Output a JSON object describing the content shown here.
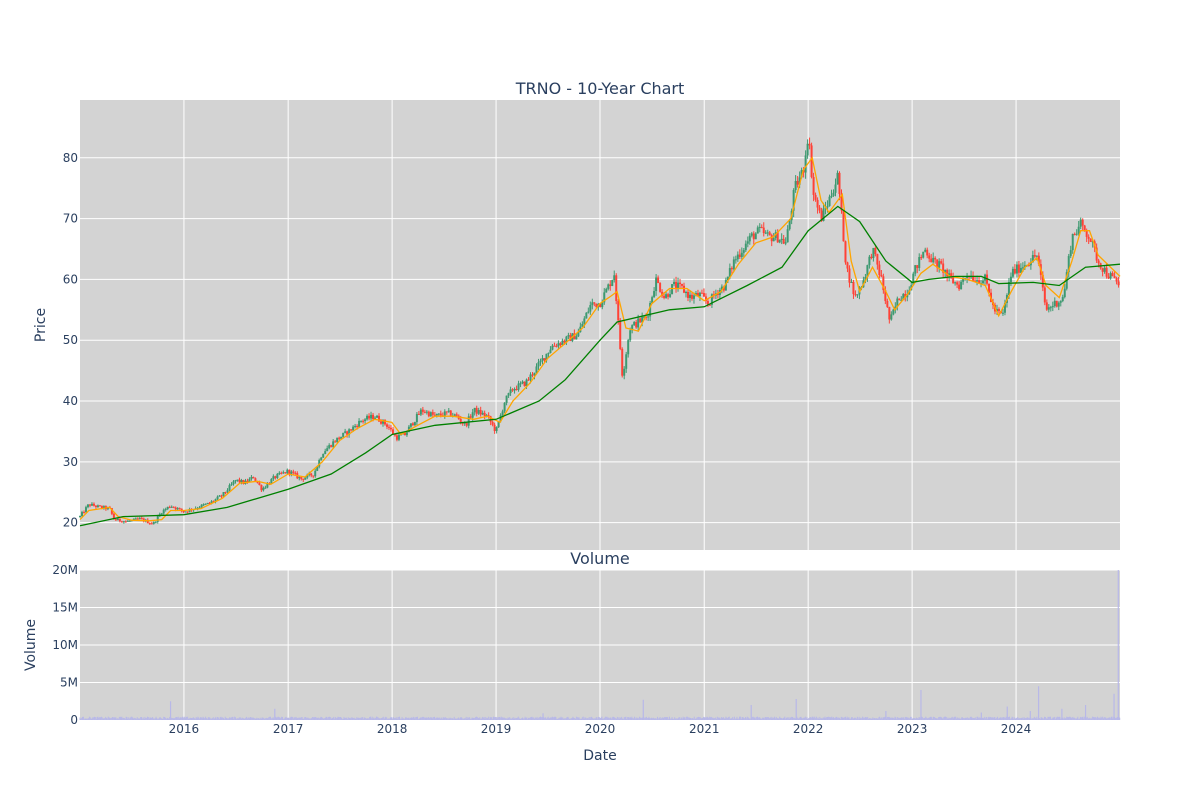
{
  "chart_data": [
    {
      "type": "candlestick",
      "title": "TRNO - 10-Year Chart",
      "ylabel": "Price",
      "ylim": [
        15.5,
        89.5
      ],
      "yticks": [
        20,
        30,
        40,
        50,
        60,
        70,
        80
      ],
      "xlim": [
        "2015-01-01",
        "2024-12-31"
      ],
      "xticks": [
        "2016-01-01",
        "2017-01-01",
        "2018-01-01",
        "2019-01-01",
        "2020-01-01",
        "2021-01-01",
        "2022-01-01",
        "2023-01-01",
        "2024-01-01"
      ],
      "xtick_labels": [
        "2016",
        "2017",
        "2018",
        "2019",
        "2020",
        "2021",
        "2022",
        "2023",
        "2024"
      ],
      "grid": true,
      "colors": {
        "plot_bg": "#d3d3d3",
        "grid": "#ffffff",
        "up": "#3d9970",
        "down": "#ff4136",
        "short_ma": "#ffa500",
        "long_ma": "#008000"
      },
      "close": [
        [
          "2015-01-01",
          21
        ],
        [
          "2015-02-01",
          23
        ],
        [
          "2015-03-15",
          22.5
        ],
        [
          "2015-04-15",
          22.3
        ],
        [
          "2015-05-01",
          20.5
        ],
        [
          "2015-06-15",
          20.2
        ],
        [
          "2015-08-01",
          20.6
        ],
        [
          "2015-09-15",
          19.8
        ],
        [
          "2015-10-15",
          21.8
        ],
        [
          "2015-11-15",
          22.8
        ],
        [
          "2016-01-01",
          21.8
        ],
        [
          "2016-02-15",
          22.5
        ],
        [
          "2016-04-01",
          23.2
        ],
        [
          "2016-05-15",
          24.5
        ],
        [
          "2016-07-01",
          27
        ],
        [
          "2016-08-01",
          26.5
        ],
        [
          "2016-09-01",
          27.5
        ],
        [
          "2016-10-01",
          25.5
        ],
        [
          "2016-11-15",
          27.5
        ],
        [
          "2017-01-01",
          28.5
        ],
        [
          "2017-02-15",
          27.2
        ],
        [
          "2017-04-01",
          28
        ],
        [
          "2017-05-01",
          31.5
        ],
        [
          "2017-06-15",
          33.5
        ],
        [
          "2017-08-01",
          35
        ],
        [
          "2017-09-15",
          36.8
        ],
        [
          "2017-11-01",
          37.5
        ],
        [
          "2017-12-15",
          36
        ],
        [
          "2018-01-15",
          34
        ],
        [
          "2018-02-15",
          34.5
        ],
        [
          "2018-03-15",
          36.5
        ],
        [
          "2018-04-15",
          38.5
        ],
        [
          "2018-06-01",
          37.5
        ],
        [
          "2018-07-15",
          38
        ],
        [
          "2018-08-15",
          37.5
        ],
        [
          "2018-09-15",
          36
        ],
        [
          "2018-10-15",
          38.5
        ],
        [
          "2018-12-01",
          37.5
        ],
        [
          "2019-01-01",
          35
        ],
        [
          "2019-02-01",
          40
        ],
        [
          "2019-03-01",
          42
        ],
        [
          "2019-04-15",
          43
        ],
        [
          "2019-06-01",
          46
        ],
        [
          "2019-07-15",
          49
        ],
        [
          "2019-09-01",
          50
        ],
        [
          "2019-10-15",
          51
        ],
        [
          "2019-12-01",
          56
        ],
        [
          "2019-12-31",
          56
        ],
        [
          "2020-02-01",
          59
        ],
        [
          "2020-02-20",
          61
        ],
        [
          "2020-03-20",
          44
        ],
        [
          "2020-04-15",
          52
        ],
        [
          "2020-05-15",
          53
        ],
        [
          "2020-06-15",
          54
        ],
        [
          "2020-07-15",
          60
        ],
        [
          "2020-08-15",
          57
        ],
        [
          "2020-09-15",
          59
        ],
        [
          "2020-10-15",
          58.5
        ],
        [
          "2020-11-15",
          57
        ],
        [
          "2020-12-15",
          57.5
        ],
        [
          "2021-01-15",
          56
        ],
        [
          "2021-02-15",
          58
        ],
        [
          "2021-03-15",
          59
        ],
        [
          "2021-04-15",
          63
        ],
        [
          "2021-05-15",
          65
        ],
        [
          "2021-06-15",
          67
        ],
        [
          "2021-07-15",
          68
        ],
        [
          "2021-08-15",
          67
        ],
        [
          "2021-09-15",
          67
        ],
        [
          "2021-10-15",
          66
        ],
        [
          "2021-11-15",
          75
        ],
        [
          "2021-12-15",
          78
        ],
        [
          "2022-01-01",
          84
        ],
        [
          "2022-01-20",
          74
        ],
        [
          "2022-02-15",
          70
        ],
        [
          "2022-03-15",
          73
        ],
        [
          "2022-04-15",
          77
        ],
        [
          "2022-05-15",
          62
        ],
        [
          "2022-06-15",
          57
        ],
        [
          "2022-07-15",
          60
        ],
        [
          "2022-08-15",
          65
        ],
        [
          "2022-09-15",
          60
        ],
        [
          "2022-10-15",
          53
        ],
        [
          "2022-11-15",
          57
        ],
        [
          "2022-12-15",
          58
        ],
        [
          "2023-01-15",
          62
        ],
        [
          "2023-02-15",
          65
        ],
        [
          "2023-03-15",
          63
        ],
        [
          "2023-04-15",
          62
        ],
        [
          "2023-05-15",
          60
        ],
        [
          "2023-06-15",
          59
        ],
        [
          "2023-07-15",
          61
        ],
        [
          "2023-08-15",
          60
        ],
        [
          "2023-09-15",
          60
        ],
        [
          "2023-10-15",
          55
        ],
        [
          "2023-11-15",
          54
        ],
        [
          "2023-12-15",
          61
        ],
        [
          "2024-01-15",
          62
        ],
        [
          "2024-02-15",
          63
        ],
        [
          "2024-03-15",
          64
        ],
        [
          "2024-04-15",
          55
        ],
        [
          "2024-05-15",
          56
        ],
        [
          "2024-06-15",
          57
        ],
        [
          "2024-07-15",
          67
        ],
        [
          "2024-08-15",
          69
        ],
        [
          "2024-09-15",
          67
        ],
        [
          "2024-10-15",
          63
        ],
        [
          "2024-11-15",
          61
        ],
        [
          "2024-12-31",
          59
        ]
      ],
      "series": [
        {
          "name": "",
          "role": "short_ma",
          "points": [
            [
              "2015-01-01",
              20.5
            ],
            [
              "2015-02-01",
              22
            ],
            [
              "2015-04-15",
              22.5
            ],
            [
              "2015-05-15",
              21
            ],
            [
              "2015-07-01",
              20.4
            ],
            [
              "2015-09-01",
              20.3
            ],
            [
              "2015-10-15",
              20.5
            ],
            [
              "2015-11-15",
              22
            ],
            [
              "2016-01-01",
              22
            ],
            [
              "2016-03-01",
              22.3
            ],
            [
              "2016-05-15",
              24
            ],
            [
              "2016-07-15",
              26.5
            ],
            [
              "2016-09-15",
              26.8
            ],
            [
              "2016-11-01",
              26.3
            ],
            [
              "2017-01-01",
              28
            ],
            [
              "2017-03-01",
              27.5
            ],
            [
              "2017-05-01",
              30
            ],
            [
              "2017-07-01",
              33.5
            ],
            [
              "2017-09-01",
              35.5
            ],
            [
              "2017-11-01",
              37
            ],
            [
              "2017-12-31",
              36.5
            ],
            [
              "2018-02-01",
              34.5
            ],
            [
              "2018-04-01",
              36
            ],
            [
              "2018-06-01",
              37.5
            ],
            [
              "2018-08-01",
              37.5
            ],
            [
              "2018-10-15",
              37
            ],
            [
              "2018-12-01",
              37.5
            ],
            [
              "2019-01-15",
              36.5
            ],
            [
              "2019-03-01",
              40
            ],
            [
              "2019-05-01",
              43
            ],
            [
              "2019-07-01",
              47
            ],
            [
              "2019-09-01",
              49.5
            ],
            [
              "2019-11-01",
              52
            ],
            [
              "2019-12-31",
              56
            ],
            [
              "2020-02-01",
              57
            ],
            [
              "2020-03-01",
              58
            ],
            [
              "2020-04-01",
              52
            ],
            [
              "2020-05-15",
              51.5
            ],
            [
              "2020-07-01",
              56
            ],
            [
              "2020-09-01",
              58.5
            ],
            [
              "2020-11-01",
              58.5
            ],
            [
              "2021-01-01",
              56.5
            ],
            [
              "2021-03-01",
              58
            ],
            [
              "2021-05-01",
              62.5
            ],
            [
              "2021-07-01",
              66
            ],
            [
              "2021-09-01",
              67
            ],
            [
              "2021-11-01",
              70
            ],
            [
              "2021-12-15",
              78
            ],
            [
              "2022-01-15",
              80
            ],
            [
              "2022-02-15",
              73
            ],
            [
              "2022-03-15",
              71
            ],
            [
              "2022-05-01",
              74
            ],
            [
              "2022-06-01",
              63
            ],
            [
              "2022-07-01",
              58
            ],
            [
              "2022-08-15",
              62
            ],
            [
              "2022-10-01",
              58
            ],
            [
              "2022-11-01",
              55
            ],
            [
              "2022-12-15",
              57.5
            ],
            [
              "2023-02-01",
              61
            ],
            [
              "2023-03-15",
              62.5
            ],
            [
              "2023-05-15",
              60.5
            ],
            [
              "2023-07-15",
              60
            ],
            [
              "2023-09-15",
              59
            ],
            [
              "2023-11-01",
              54
            ],
            [
              "2023-12-15",
              58
            ],
            [
              "2024-02-01",
              62
            ],
            [
              "2024-03-15",
              63.5
            ],
            [
              "2024-04-15",
              59
            ],
            [
              "2024-06-01",
              57
            ],
            [
              "2024-07-15",
              63
            ],
            [
              "2024-08-15",
              68
            ],
            [
              "2024-09-15",
              68
            ],
            [
              "2024-10-15",
              64
            ],
            [
              "2024-12-31",
              60.5
            ]
          ]
        },
        {
          "name": "",
          "role": "long_ma",
          "points": [
            [
              "2015-01-01",
              19.5
            ],
            [
              "2015-06-01",
              21
            ],
            [
              "2016-01-01",
              21.3
            ],
            [
              "2016-06-01",
              22.5
            ],
            [
              "2017-01-01",
              25.5
            ],
            [
              "2017-06-01",
              28
            ],
            [
              "2017-10-01",
              31.5
            ],
            [
              "2018-01-01",
              34.5
            ],
            [
              "2018-06-01",
              36
            ],
            [
              "2019-01-01",
              37
            ],
            [
              "2019-06-01",
              40
            ],
            [
              "2019-09-01",
              43.5
            ],
            [
              "2020-01-01",
              50
            ],
            [
              "2020-03-01",
              53
            ],
            [
              "2020-09-01",
              55
            ],
            [
              "2021-01-01",
              55.5
            ],
            [
              "2021-06-01",
              59
            ],
            [
              "2021-10-01",
              62
            ],
            [
              "2022-01-01",
              68
            ],
            [
              "2022-04-15",
              72
            ],
            [
              "2022-07-01",
              69.5
            ],
            [
              "2022-10-01",
              63
            ],
            [
              "2023-01-01",
              59.5
            ],
            [
              "2023-03-01",
              60
            ],
            [
              "2023-06-01",
              60.5
            ],
            [
              "2023-09-01",
              60.5
            ],
            [
              "2023-11-01",
              59.3
            ],
            [
              "2024-03-01",
              59.5
            ],
            [
              "2024-06-01",
              59
            ],
            [
              "2024-09-01",
              62
            ],
            [
              "2024-12-31",
              62.5
            ]
          ]
        }
      ]
    },
    {
      "type": "bar",
      "title": "Volume",
      "xlabel": "Date",
      "ylabel": "Volume",
      "ylim": [
        0,
        20000000
      ],
      "ytick_labels": [
        "0",
        "5M",
        "10M",
        "15M",
        "20M"
      ],
      "yticks": [
        0,
        5000000,
        10000000,
        15000000,
        20000000
      ],
      "grid": true,
      "colors": {
        "bar": "#b8b8e8"
      },
      "baseline_volume": 300000,
      "spikes": [
        [
          "2015-11-15",
          2500000
        ],
        [
          "2016-11-15",
          1500000
        ],
        [
          "2019-06-15",
          900000
        ],
        [
          "2020-06-01",
          2700000
        ],
        [
          "2021-06-15",
          2000000
        ],
        [
          "2021-11-20",
          2800000
        ],
        [
          "2022-10-01",
          1200000
        ],
        [
          "2023-02-01",
          4000000
        ],
        [
          "2023-09-01",
          1000000
        ],
        [
          "2023-12-01",
          1800000
        ],
        [
          "2024-02-20",
          1200000
        ],
        [
          "2024-03-20",
          4500000
        ],
        [
          "2024-06-10",
          1500000
        ],
        [
          "2024-09-01",
          2000000
        ],
        [
          "2024-12-10",
          3500000
        ],
        [
          "2024-12-25",
          20000000
        ]
      ]
    }
  ]
}
